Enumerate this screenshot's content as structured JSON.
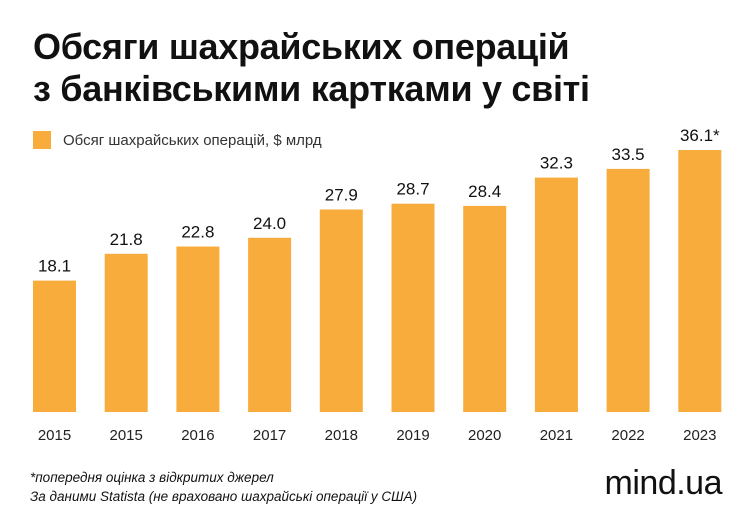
{
  "title_lines": [
    "Обсяги шахрайських операцій",
    "з банківськими картками у світі"
  ],
  "colors": {
    "bar": "#F7AC3C",
    "text": "#111111"
  },
  "chart_data": {
    "type": "bar",
    "categories": [
      "2015",
      "2015",
      "2016",
      "2017",
      "2018",
      "2019",
      "2020",
      "2021",
      "2022",
      "2023"
    ],
    "series": [
      {
        "name": "Обсяг шахрайських операцій, $ млрд",
        "values": [
          18.1,
          21.8,
          22.8,
          24.0,
          27.9,
          28.7,
          28.4,
          32.3,
          33.5,
          36.1
        ]
      }
    ],
    "value_labels": [
      "18.1",
      "21.8",
      "22.8",
      "24.0",
      "27.9",
      "28.7",
      "28.4",
      "32.3",
      "33.5",
      "36.1*"
    ],
    "ylim": [
      0,
      36.1
    ],
    "grid": false,
    "legend": "top-left"
  },
  "footnotes": [
    "*попередня оцінка з відкритих джерел",
    "За даними Statista (не враховано шахрайські операції у США)"
  ],
  "brand": "mind.ua"
}
